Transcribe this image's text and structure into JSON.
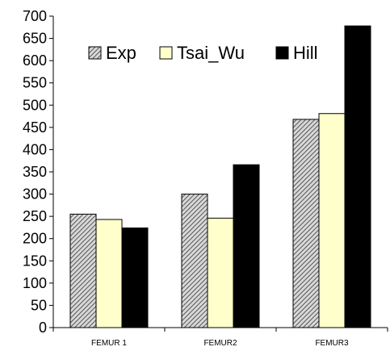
{
  "chart_data": {
    "type": "bar",
    "title": "",
    "xlabel": "",
    "ylabel": "",
    "categories": [
      "FEMUR 1",
      "FEMUR2",
      "FEMUR3"
    ],
    "ylim": [
      0,
      700
    ],
    "yticks": [
      0,
      50,
      100,
      150,
      200,
      250,
      300,
      350,
      400,
      450,
      500,
      550,
      600,
      650,
      700
    ],
    "grid": false,
    "legend": "top",
    "series": [
      {
        "name": "Exp",
        "values": [
          255,
          300,
          468
        ],
        "fill": "hatched-gray",
        "color": "#9a9a9a"
      },
      {
        "name": "Tsai_Wu",
        "values": [
          243,
          246,
          481
        ],
        "fill": "solid",
        "color": "#ffffcc"
      },
      {
        "name": "Hill",
        "values": [
          224,
          366,
          678
        ],
        "fill": "solid",
        "color": "#000000"
      }
    ]
  }
}
